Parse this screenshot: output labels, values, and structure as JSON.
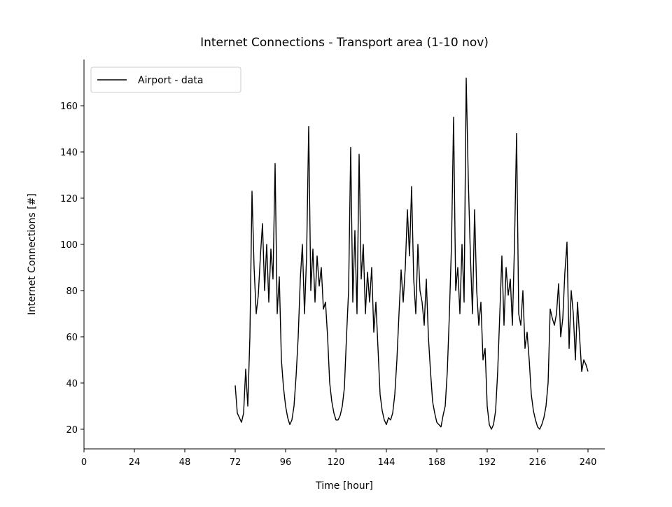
{
  "chart_data": {
    "type": "line",
    "title": "Internet Connections - Transport area (1-10 nov)",
    "x_label": "Time [hour]",
    "y_label": "Internet Connections [#]",
    "x": [
      72,
      73,
      74,
      75,
      76,
      77,
      78,
      79,
      80,
      81,
      82,
      83,
      84,
      85,
      86,
      87,
      88,
      89,
      90,
      91,
      92,
      93,
      94,
      95,
      96,
      97,
      98,
      99,
      100,
      101,
      102,
      103,
      104,
      105,
      106,
      107,
      108,
      109,
      110,
      111,
      112,
      113,
      114,
      115,
      116,
      117,
      118,
      119,
      120,
      121,
      122,
      123,
      124,
      125,
      126,
      127,
      128,
      129,
      130,
      131,
      132,
      133,
      134,
      135,
      136,
      137,
      138,
      139,
      140,
      141,
      142,
      143,
      144,
      145,
      146,
      147,
      148,
      149,
      150,
      151,
      152,
      153,
      154,
      155,
      156,
      157,
      158,
      159,
      160,
      161,
      162,
      163,
      164,
      165,
      166,
      167,
      168,
      169,
      170,
      171,
      172,
      173,
      174,
      175,
      176,
      177,
      178,
      179,
      180,
      181,
      182,
      183,
      184,
      185,
      186,
      187,
      188,
      189,
      190,
      191,
      192,
      193,
      194,
      195,
      196,
      197,
      198,
      199,
      200,
      201,
      202,
      203,
      204,
      205,
      206,
      207,
      208,
      209,
      210,
      211,
      212,
      213,
      214,
      215,
      216,
      217,
      218,
      219,
      220,
      221,
      222,
      223,
      224,
      225,
      226,
      227,
      228,
      229,
      230,
      231,
      232,
      233,
      234,
      235,
      236,
      237,
      238,
      239,
      240
    ],
    "series": [
      {
        "name": "Airport - data",
        "color": "#000000",
        "values": [
          39,
          27,
          25,
          23,
          27,
          46,
          30,
          60,
          123,
          90,
          70,
          78,
          95,
          109,
          80,
          100,
          75,
          98,
          85,
          135,
          70,
          86,
          50,
          38,
          30,
          25,
          22,
          24,
          30,
          43,
          60,
          85,
          100,
          70,
          95,
          151,
          80,
          98,
          75,
          95,
          82,
          90,
          72,
          75,
          60,
          40,
          32,
          27,
          24,
          24,
          26,
          30,
          38,
          60,
          80,
          142,
          75,
          106,
          70,
          139,
          85,
          100,
          70,
          88,
          75,
          90,
          62,
          75,
          55,
          35,
          28,
          24,
          22,
          25,
          24,
          27,
          35,
          50,
          70,
          89,
          75,
          90,
          115,
          95,
          125,
          85,
          70,
          100,
          80,
          75,
          65,
          85,
          60,
          45,
          32,
          27,
          23,
          22,
          21,
          26,
          30,
          45,
          70,
          100,
          155,
          80,
          90,
          70,
          100,
          75,
          172,
          128,
          95,
          70,
          115,
          80,
          65,
          75,
          50,
          55,
          30,
          22,
          20,
          22,
          28,
          45,
          70,
          95,
          65,
          90,
          78,
          85,
          65,
          100,
          148,
          70,
          65,
          80,
          55,
          62,
          50,
          35,
          28,
          24,
          21,
          20,
          22,
          25,
          30,
          40,
          72,
          68,
          65,
          70,
          83,
          60,
          68,
          88,
          101,
          55,
          80,
          70,
          50,
          75,
          60,
          45,
          50,
          48,
          45
        ]
      }
    ],
    "xlim": [
      0,
      248
    ],
    "ylim": [
      11.5,
      180
    ],
    "xticks": [
      0,
      24,
      48,
      72,
      96,
      120,
      144,
      168,
      192,
      216,
      240
    ],
    "yticks": [
      20,
      40,
      60,
      80,
      100,
      120,
      140,
      160
    ],
    "grid": false,
    "legend": "upper left"
  }
}
